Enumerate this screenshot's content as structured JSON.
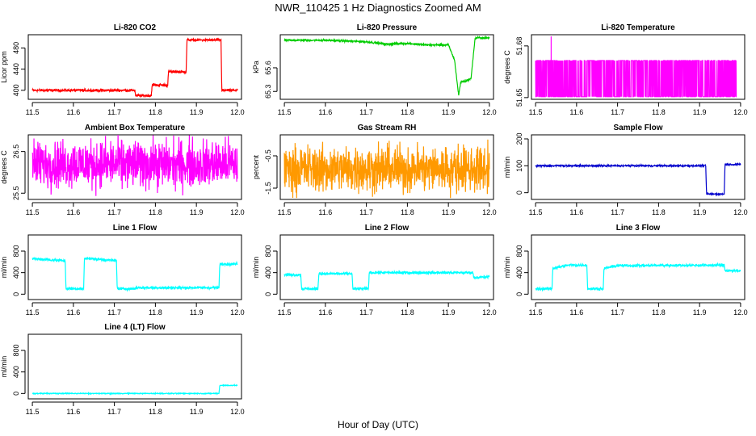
{
  "figure": {
    "title": "NWR_110425  1 Hz Diagnostics Zoomed AM",
    "xlabel": "Hour of Day (UTC)"
  },
  "chart_data": [
    {
      "id": "co2",
      "type": "line",
      "title": "Li-820 CO2",
      "ylabel": "Licor ppm",
      "color": "#ff0000",
      "xlim": [
        11.49,
        12.01
      ],
      "ylim": [
        383,
        505
      ],
      "xticks": [
        "11.5",
        "11.6",
        "11.7",
        "11.8",
        "11.9",
        "12.0"
      ],
      "yticks": [
        400,
        440,
        480
      ],
      "series": [
        {
          "x": [
            11.5,
            11.75,
            11.752,
            11.79,
            11.792,
            11.83,
            11.832,
            11.875,
            11.877,
            11.96,
            11.962,
            12.0
          ],
          "y": [
            400,
            400,
            390,
            390,
            410,
            410,
            435,
            435,
            495,
            495,
            400,
            400
          ],
          "noise": 1.2
        }
      ]
    },
    {
      "id": "pressure",
      "type": "line",
      "title": "Li-820 Pressure",
      "ylabel": "kPa",
      "color": "#00cc00",
      "xlim": [
        11.49,
        12.01
      ],
      "ylim": [
        65.2,
        66.02
      ],
      "xticks": [
        "11.5",
        "11.6",
        "11.7",
        "11.8",
        "11.9",
        "12.0"
      ],
      "yticks": [
        65.3,
        65.6
      ],
      "series": [
        {
          "x": [
            11.5,
            11.6,
            11.7,
            11.75,
            11.8,
            11.85,
            11.9,
            11.915,
            11.925,
            11.93,
            11.94,
            11.955,
            11.965,
            11.97,
            12.0
          ],
          "y": [
            65.95,
            65.95,
            65.93,
            65.9,
            65.91,
            65.89,
            65.89,
            65.7,
            65.25,
            65.42,
            65.43,
            65.46,
            65.97,
            65.98,
            65.98
          ],
          "noise": 0.006
        }
      ]
    },
    {
      "id": "licor-temp",
      "type": "line",
      "title": "Li-820 Temperature",
      "ylabel": "degrees C",
      "color": "#ff00ff",
      "xlim": [
        11.49,
        12.01
      ],
      "ylim": [
        51.649,
        51.6865
      ],
      "xticks": [
        "11.5",
        "11.6",
        "11.7",
        "11.8",
        "11.9",
        "12.0"
      ],
      "yticks": [
        51.65,
        51.68
      ],
      "series": [
        {
          "x": [
            11.5,
            11.99
          ],
          "y": [
            51.6505,
            51.6715
          ],
          "pattern": "toggle",
          "spike_x": 11.538,
          "spike_y": 51.6855
        }
      ]
    },
    {
      "id": "ambient",
      "type": "line",
      "title": "Ambient Box Temperature",
      "ylabel": "degrees C",
      "color": "#ff00ff",
      "xlim": [
        11.49,
        12.01
      ],
      "ylim": [
        25.35,
        26.9
      ],
      "xticks": [
        "11.5",
        "11.6",
        "11.7",
        "11.8",
        "11.9",
        "12.0"
      ],
      "yticks": [
        25.5,
        26.5
      ],
      "series": [
        {
          "x": [
            11.5,
            12.0
          ],
          "y": [
            26.2,
            26.2
          ],
          "noise": 0.28
        }
      ]
    },
    {
      "id": "rh",
      "type": "line",
      "title": "Gas Stream RH",
      "ylabel": "percent",
      "color": "#ff9900",
      "xlim": [
        11.49,
        12.01
      ],
      "ylim": [
        -1.85,
        0.15
      ],
      "xticks": [
        "11.5",
        "11.6",
        "11.7",
        "11.8",
        "11.9",
        "12.0"
      ],
      "yticks": [
        -1.5,
        -0.5
      ],
      "series": [
        {
          "x": [
            11.5,
            12.0
          ],
          "y": [
            -0.9,
            -0.9
          ],
          "noise": 0.35
        }
      ]
    },
    {
      "id": "sample-flow",
      "type": "line",
      "title": "Sample Flow",
      "ylabel": "ml/min",
      "color": "#0000cc",
      "xlim": [
        11.49,
        12.01
      ],
      "ylim": [
        -25,
        215
      ],
      "xticks": [
        "11.5",
        "11.6",
        "11.7",
        "11.8",
        "11.9",
        "12.0"
      ],
      "yticks": [
        0,
        100,
        200
      ],
      "series": [
        {
          "x": [
            11.5,
            11.915,
            11.917,
            11.96,
            11.962,
            12.0
          ],
          "y": [
            100,
            100,
            -5,
            -5,
            105,
            105
          ],
          "noise": 1.5
        }
      ]
    },
    {
      "id": "line1",
      "type": "line",
      "title": "Line 1 Flow",
      "ylabel": "ml/min",
      "color": "#00ffff",
      "xlim": [
        11.49,
        12.01
      ],
      "ylim": [
        -100,
        1100
      ],
      "xticks": [
        "11.5",
        "11.6",
        "11.7",
        "11.8",
        "11.9",
        "12.0"
      ],
      "yticks": [
        0,
        400,
        800
      ],
      "series": [
        {
          "x": [
            11.5,
            11.58,
            11.582,
            11.625,
            11.627,
            11.705,
            11.707,
            11.75,
            11.752,
            11.955,
            11.957,
            12.0
          ],
          "y": [
            660,
            620,
            100,
            100,
            670,
            620,
            100,
            100,
            120,
            120,
            550,
            570
          ],
          "noise": 12
        }
      ]
    },
    {
      "id": "line2",
      "type": "line",
      "title": "Line 2 Flow",
      "ylabel": "ml/min",
      "color": "#00ffff",
      "xlim": [
        11.49,
        12.01
      ],
      "ylim": [
        -100,
        1100
      ],
      "xticks": [
        "11.5",
        "11.6",
        "11.7",
        "11.8",
        "11.9",
        "12.0"
      ],
      "yticks": [
        0,
        400,
        800
      ],
      "series": [
        {
          "x": [
            11.5,
            11.54,
            11.542,
            11.582,
            11.584,
            11.665,
            11.667,
            11.705,
            11.707,
            11.96,
            11.962,
            12.0
          ],
          "y": [
            360,
            360,
            100,
            100,
            380,
            380,
            100,
            100,
            400,
            400,
            310,
            320
          ],
          "noise": 12
        }
      ]
    },
    {
      "id": "line3",
      "type": "line",
      "title": "Line 3 Flow",
      "ylabel": "ml/min",
      "color": "#00ffff",
      "xlim": [
        11.49,
        12.01
      ],
      "ylim": [
        -100,
        1100
      ],
      "xticks": [
        "11.5",
        "11.6",
        "11.7",
        "11.8",
        "11.9",
        "12.0"
      ],
      "yticks": [
        0,
        400,
        800
      ],
      "series": [
        {
          "x": [
            11.5,
            11.54,
            11.542,
            11.58,
            11.625,
            11.627,
            11.665,
            11.667,
            11.7,
            11.96,
            11.962,
            12.0
          ],
          "y": [
            100,
            100,
            480,
            540,
            540,
            100,
            100,
            480,
            530,
            540,
            440,
            430
          ],
          "noise": 12
        }
      ]
    },
    {
      "id": "line4",
      "type": "line",
      "title": "Line 4 (LT) Flow",
      "ylabel": "ml/min",
      "color": "#00ffff",
      "xlim": [
        11.49,
        12.01
      ],
      "ylim": [
        -100,
        1100
      ],
      "xticks": [
        "11.5",
        "11.6",
        "11.7",
        "11.8",
        "11.9",
        "12.0"
      ],
      "yticks": [
        0,
        400,
        800
      ],
      "series": [
        {
          "x": [
            11.5,
            11.955,
            11.957,
            12.0
          ],
          "y": [
            0,
            0,
            150,
            150
          ],
          "noise": 4
        }
      ]
    }
  ]
}
